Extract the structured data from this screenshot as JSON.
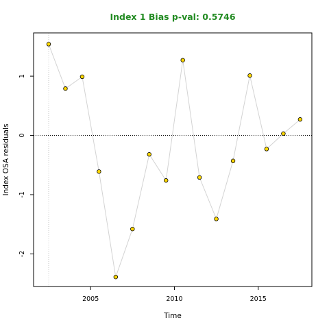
{
  "chart_data": {
    "type": "scatter",
    "title": "Index 1 Bias p-val: 0.5746",
    "xlabel": "Time",
    "ylabel": "Index OSA residuals",
    "xlim": [
      2001.6,
      2018.2
    ],
    "ylim": [
      -2.55,
      1.73
    ],
    "x_ticks": [
      2005,
      2010,
      2015
    ],
    "y_ticks": [
      -2,
      -1,
      0,
      1
    ],
    "grid": false,
    "reference_line_y": 0,
    "vertical_reference_x": 2002.5,
    "series": [
      {
        "x": [
          2002.5,
          2003.5,
          2004.5,
          2005.5,
          2006.5,
          2007.5,
          2008.5,
          2009.5,
          2010.5,
          2011.5,
          2012.5,
          2013.5,
          2014.5,
          2015.5,
          2016.5,
          2017.5
        ],
        "values": [
          1.54,
          0.79,
          0.99,
          -0.61,
          -2.39,
          -1.58,
          -0.32,
          -0.76,
          1.27,
          -0.71,
          -1.41,
          -0.43,
          1.01,
          -0.23,
          0.03,
          0.27
        ]
      }
    ],
    "colors": {
      "title": "#228b22",
      "point_fill": "#ffd700",
      "point_stroke": "#000000",
      "line": "#d3d3d3",
      "zero_line": "#000000",
      "vref_line": "#c8c8c8"
    }
  }
}
